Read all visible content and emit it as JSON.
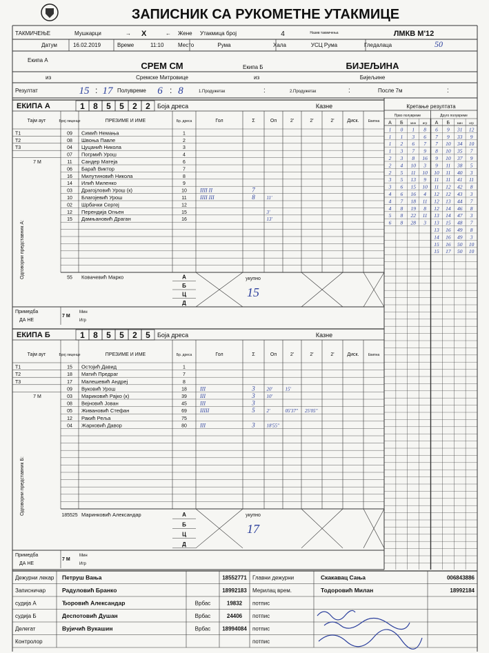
{
  "title": "ЗАПИСНИК СА РУКОМЕТНЕ УТАКМИЦЕ",
  "match": {
    "competition_label": "ТАКМИЧЕЊЕ",
    "men": "Мушкарци",
    "arrow_right": "→",
    "mark": "X",
    "arrow_left": "←",
    "women": "Жене",
    "match_no_label": "Утакмица број",
    "match_no": "4",
    "competition_name_label": "Назив такмичења",
    "competition_name": "ЛМКВ М'12",
    "date_label": "Датум",
    "date": "16.02.2019",
    "time_label": "Време",
    "time": "11:10",
    "place_label": "Место",
    "place": "Рума",
    "hall_label": "Хала",
    "hall": "УСЦ Рума",
    "spectators_label": "Гледалаца",
    "spectators": "50",
    "team_a_label": "Екипа А",
    "team_a": "СРЕМ СМ",
    "team_b_label": "Екипа Б",
    "team_b": "БИЈЕЉИНА",
    "from_a_label": "из",
    "from_a": "Сремске Митровице",
    "from_b_label": "из",
    "from_b": "Бијељине",
    "result_label": "Резултат",
    "result_a": "15",
    "result_sep": ":",
    "result_b": "17",
    "half_label": "Полувреме",
    "half_a": "6",
    "half_sep": ":",
    "half_b": "8",
    "ot1_label": "1.Продужетак",
    "ot1_sep": ":",
    "ot2_label": "2.Продужетак",
    "ot2_sep": ":",
    "p7_label": "После 7м",
    "p7_sep": ":"
  },
  "teams": [
    {
      "label": "ЕКИПА А",
      "license": [
        "1",
        "8",
        "5",
        "5",
        "2",
        "2"
      ],
      "kit_label": "Боја дреса",
      "penalties_label": "Казне",
      "columns": [
        "Тајм аут",
        "Број лиценце",
        "ПРЕЗИМЕ И ИМЕ",
        "Бр. дреса",
        "Гол",
        "Σ",
        "Оп",
        "2'",
        "2'",
        "2'",
        "Диск.",
        "Екипна"
      ],
      "timeouts": [
        "T1",
        "T2",
        "T3",
        "7 М"
      ],
      "players": [
        {
          "lic": "09",
          "name": "Симић Немања",
          "no": "1"
        },
        {
          "lic": "08",
          "name": "Швоња Павле",
          "no": "2"
        },
        {
          "lic": "04",
          "name": "Цуцанић Никола",
          "no": "3"
        },
        {
          "lic": "07",
          "name": "Погрмић Урош",
          "no": "4"
        },
        {
          "lic": "11",
          "name": "Сандер Матеја",
          "no": "6"
        },
        {
          "lic": "06",
          "name": "Бараћ Виктор",
          "no": "7"
        },
        {
          "lic": "16",
          "name": "Милутиновић Никола",
          "no": "8"
        },
        {
          "lic": "14",
          "name": "Илић Миленко",
          "no": "9"
        },
        {
          "lic": "03",
          "name": "Драгојловић Урош (к)",
          "no": "10",
          "goals": "IIII II",
          "sum": "7"
        },
        {
          "lic": "10",
          "name": "Благојевић Урош",
          "no": "11",
          "goals": "IIII III",
          "sum": "8",
          "pens": [
            "11'"
          ]
        },
        {
          "lic": "02",
          "name": "Шрбачки Сергеј",
          "no": "12"
        },
        {
          "lic": "12",
          "name": "Перендија Огњен",
          "no": "15",
          "pens": [
            "3'"
          ]
        },
        {
          "lic": "15",
          "name": "Дамњановић Драган",
          "no": "16",
          "pens": [
            "13'"
          ]
        }
      ],
      "official": {
        "lic": "55",
        "name": "Ковачевић Марко"
      },
      "official_roles": [
        "А",
        "Б",
        "Ц",
        "Д"
      ],
      "total_label": "укупно",
      "total": "15",
      "officials_label": "Одговорни представник А:",
      "remark_label": "Примедба",
      "remark_options": "ДА НЕ",
      "seven_m": "7 М",
      "min_label": "Мин",
      "played_label": "Игр"
    },
    {
      "label": "ЕКИПА Б",
      "license": [
        "1",
        "8",
        "5",
        "5",
        "2",
        "5"
      ],
      "kit_label": "Боја дреса",
      "penalties_label": "Казне",
      "columns": [
        "Тајм аут",
        "Број лиценце",
        "ПРЕЗИМЕ И ИМЕ",
        "Бр. дреса",
        "Гол",
        "Σ",
        "Оп",
        "2'",
        "2'",
        "2'",
        "Диск.",
        "Екипна"
      ],
      "timeouts": [
        "T1",
        "T2",
        "T3",
        "7 М"
      ],
      "players": [
        {
          "lic": "15",
          "name": "Остојић Давид",
          "no": "1"
        },
        {
          "lic": "18",
          "name": "Матић Предраг",
          "no": "7"
        },
        {
          "lic": "17",
          "name": "Малешевић Андреј",
          "no": "8"
        },
        {
          "lic": "09",
          "name": "Вуковић Урош",
          "no": "18",
          "goals": "III",
          "sum": "3",
          "pens": [
            "20'",
            "15'"
          ]
        },
        {
          "lic": "03",
          "name": "Мариковић Рајко (к)",
          "no": "39",
          "goals": "III",
          "sum": "3",
          "pens": [
            "10'"
          ]
        },
        {
          "lic": "08",
          "name": "Вејновић Јован",
          "no": "45",
          "goals": "III",
          "sum": "3"
        },
        {
          "lic": "05",
          "name": "Живановић Стефан",
          "no": "69",
          "goals": "IIIII",
          "sum": "5",
          "pens": [
            "2'",
            "05'37''",
            "25'05''"
          ]
        },
        {
          "lic": "12",
          "name": "Ракић Реља",
          "no": "75"
        },
        {
          "lic": "04",
          "name": "Жарковић Давор",
          "no": "80",
          "goals": "III",
          "sum": "3",
          "pens": [
            "18'55''"
          ]
        }
      ],
      "official": {
        "lic": "185525",
        "name": "Маринковић Александар"
      },
      "official_roles": [
        "А",
        "Б",
        "Ц",
        "Д"
      ],
      "total_label": "укупно",
      "total": "17",
      "officials_label": "Одговорни представник Б:",
      "remark_label": "Примедба",
      "remark_options": "ДА НЕ",
      "seven_m": "7 М",
      "min_label": "Мин",
      "played_label": "Игр"
    }
  ],
  "progress": {
    "title": "Кретање резултата",
    "first_half": "Прво полувреме",
    "second_half": "Друго полувреме",
    "columns": [
      "А",
      "Б",
      "мин",
      "игр",
      "А",
      "Б",
      "мин",
      "игр"
    ],
    "first": [
      [
        1,
        0,
        1,
        8
      ],
      [
        1,
        1,
        3,
        6
      ],
      [
        1,
        2,
        6,
        7
      ],
      [
        1,
        3,
        7,
        9
      ],
      [
        2,
        3,
        8,
        16
      ],
      [
        2,
        4,
        10,
        3
      ],
      [
        2,
        5,
        11,
        10
      ],
      [
        3,
        5,
        13,
        9
      ],
      [
        3,
        6,
        15,
        10
      ],
      [
        4,
        6,
        16,
        4
      ],
      [
        4,
        7,
        18,
        11
      ],
      [
        4,
        8,
        19,
        8
      ],
      [
        5,
        8,
        22,
        11
      ],
      [
        6,
        8,
        28,
        3
      ]
    ],
    "second": [
      [
        6,
        9,
        31,
        12
      ],
      [
        7,
        9,
        33,
        9
      ],
      [
        7,
        10,
        34,
        10
      ],
      [
        8,
        10,
        35,
        7
      ],
      [
        9,
        10,
        37,
        9
      ],
      [
        9,
        11,
        38,
        5
      ],
      [
        10,
        11,
        40,
        3
      ],
      [
        11,
        11,
        41,
        11
      ],
      [
        11,
        12,
        42,
        8
      ],
      [
        12,
        12,
        43,
        3
      ],
      [
        12,
        13,
        44,
        7
      ],
      [
        12,
        14,
        46,
        8
      ],
      [
        13,
        14,
        47,
        3
      ],
      [
        13,
        15,
        48,
        7
      ],
      [
        13,
        16,
        49,
        8
      ],
      [
        14,
        16,
        49,
        3
      ],
      [
        15,
        16,
        50,
        10
      ],
      [
        15,
        17,
        50,
        10
      ]
    ]
  },
  "staff": [
    {
      "role": "Дежурни лекар",
      "name": "Петруш Вања",
      "id": "18552771",
      "role2": "Главни дежурни",
      "name2": "Скакавац Сања",
      "id2": "006843886"
    },
    {
      "role": "Записничар",
      "name": "Радуловић Бранко",
      "id": "18992183",
      "role2": "Мерилац врем.",
      "name2": "Тодоровић Милан",
      "id2": "18992184"
    },
    {
      "role": "судија А",
      "name": "Ђоровић Александар",
      "city": "Врбас",
      "id": "19832",
      "role2": "потпис"
    },
    {
      "role": "судија Б",
      "name": "Деспотовић Душан",
      "city": "Врбас",
      "id": "24406",
      "role2": "потпис"
    },
    {
      "role": "Делегат",
      "name": "Вујичић Вукашин",
      "city": "Врбас",
      "id": "18994084",
      "role2": "потпис"
    },
    {
      "role": "Контролор",
      "role2": "потпис"
    }
  ]
}
